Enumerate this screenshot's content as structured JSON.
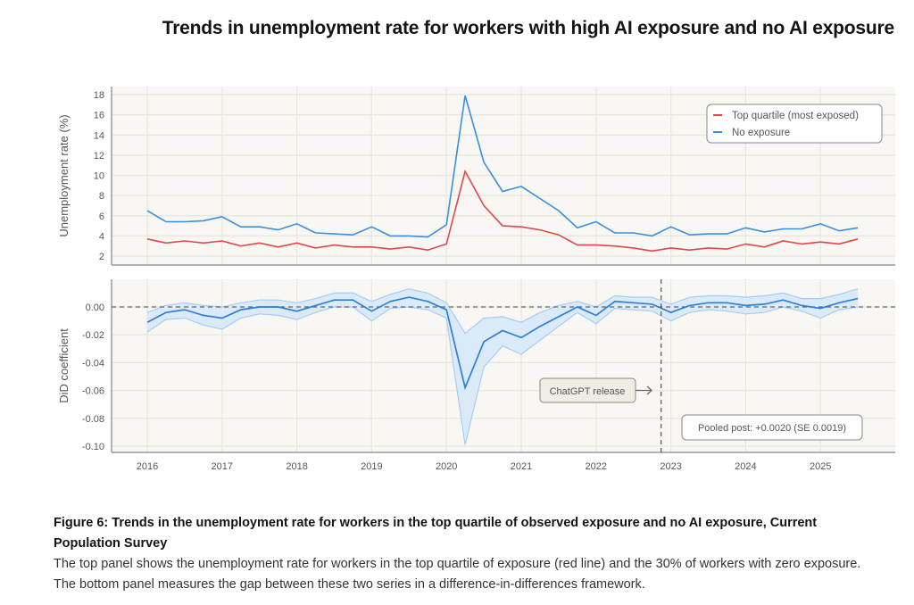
{
  "title": "Trends in unemployment rate for workers with high AI exposure and no AI exposure",
  "caption": {
    "title": "Figure 6: Trends in the unemployment rate for workers in the top quartile of observed exposure and no AI exposure, Current Population Survey",
    "body": "The top panel shows the unemployment rate for workers in the top quartile of exposure (red line) and the 30% of workers with zero exposure. The bottom panel measures the gap between these two series in a difference-in-differences framework."
  },
  "colors": {
    "red": "#e0474c",
    "blue": "#3a8ee0",
    "band": "#dbeaf9",
    "band_edge": "#a9ccf2",
    "bg": "#f8f7f3"
  },
  "chart_data": [
    {
      "type": "line",
      "title": "",
      "ylabel": "Unemployment rate (%)",
      "ylim": [
        2,
        18.5
      ],
      "yticks": [
        2,
        4,
        6,
        8,
        10,
        12,
        14,
        16,
        18
      ],
      "grid": true,
      "legend_position": "top-right",
      "x_start": 2016,
      "x_step": 0.25,
      "series": [
        {
          "name": "Top quartile (most exposed)",
          "color": "#e0474c",
          "values": [
            3.7,
            3.3,
            3.5,
            3.3,
            3.5,
            3.0,
            3.3,
            2.9,
            3.3,
            2.8,
            3.1,
            2.9,
            2.9,
            2.7,
            2.9,
            2.6,
            3.2,
            10.4,
            7.0,
            5.0,
            4.9,
            4.6,
            4.1,
            3.1,
            3.1,
            3.0,
            2.8,
            2.5,
            2.8,
            2.6,
            2.8,
            2.7,
            3.2,
            2.9,
            3.5,
            3.2,
            3.4,
            3.2,
            3.7
          ]
        },
        {
          "name": "No exposure",
          "color": "#3a8ee0",
          "values": [
            6.5,
            5.4,
            5.4,
            5.5,
            5.9,
            4.9,
            4.9,
            4.6,
            5.2,
            4.3,
            4.2,
            4.1,
            4.9,
            4.0,
            4.0,
            3.9,
            5.1,
            17.9,
            11.3,
            8.4,
            8.9,
            7.7,
            6.5,
            4.8,
            5.4,
            4.3,
            4.3,
            4.0,
            4.9,
            4.1,
            4.2,
            4.2,
            4.8,
            4.4,
            4.7,
            4.7,
            5.2,
            4.5,
            4.8
          ]
        }
      ]
    },
    {
      "type": "line",
      "ylabel": "DiD coefficient",
      "ylim": [
        -0.104,
        0.02
      ],
      "yticks": [
        0.0,
        -0.02,
        -0.04,
        -0.06,
        -0.08,
        -0.1
      ],
      "ytick_labels": [
        "0.00",
        "-0.02",
        "-0.04",
        "-0.06",
        "-0.08",
        "-0.10"
      ],
      "xticks": [
        "2016",
        "2017",
        "2018",
        "2019",
        "2020",
        "2021",
        "2022",
        "2023",
        "2024",
        "2025"
      ],
      "x_start": 2016,
      "x_step": 0.25,
      "estimate": [
        -0.011,
        -0.004,
        -0.002,
        -0.006,
        -0.008,
        -0.002,
        0.0,
        0.0,
        -0.003,
        0.001,
        0.005,
        0.005,
        -0.003,
        0.004,
        0.007,
        0.004,
        -0.002,
        -0.058,
        -0.025,
        -0.017,
        -0.022,
        -0.014,
        -0.007,
        0.0,
        -0.006,
        0.004,
        0.003,
        0.002,
        -0.004,
        0.001,
        0.003,
        0.003,
        0.001,
        0.002,
        0.005,
        0.001,
        -0.001,
        0.003,
        0.006
      ],
      "lower": [
        -0.018,
        -0.009,
        -0.008,
        -0.013,
        -0.016,
        -0.008,
        -0.005,
        -0.006,
        -0.009,
        -0.004,
        0.0,
        0.0,
        -0.01,
        -0.001,
        0.0,
        -0.002,
        -0.008,
        -0.099,
        -0.043,
        -0.028,
        -0.034,
        -0.024,
        -0.014,
        -0.004,
        -0.012,
        -0.001,
        -0.002,
        -0.003,
        -0.01,
        -0.004,
        -0.002,
        -0.003,
        -0.005,
        -0.004,
        0.0,
        -0.003,
        -0.008,
        -0.002,
        0.0
      ],
      "upper": [
        -0.004,
        0.001,
        0.003,
        0.001,
        0.0,
        0.003,
        0.005,
        0.005,
        0.003,
        0.006,
        0.01,
        0.01,
        0.004,
        0.009,
        0.013,
        0.01,
        0.003,
        -0.019,
        -0.008,
        -0.007,
        -0.011,
        -0.004,
        0.001,
        0.004,
        0.0,
        0.008,
        0.007,
        0.007,
        0.002,
        0.007,
        0.008,
        0.008,
        0.007,
        0.008,
        0.01,
        0.006,
        0.006,
        0.009,
        0.013
      ],
      "reference_line": 0,
      "event": {
        "x": 2022.87,
        "label": "ChatGPT release"
      },
      "annotation": "Pooled post: +0.0020 (SE 0.0019)"
    }
  ]
}
